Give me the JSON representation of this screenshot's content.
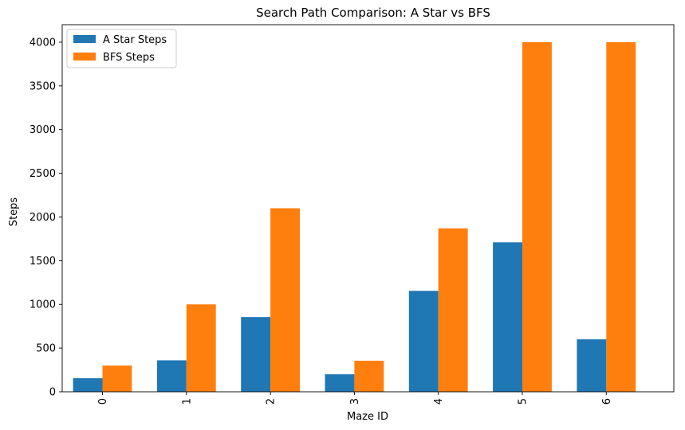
{
  "chart_data": {
    "type": "bar",
    "title": "Search Path Comparison: A Star vs BFS",
    "xlabel": "Maze ID",
    "ylabel": "Steps",
    "categories": [
      "0",
      "1",
      "2",
      "3",
      "4",
      "5",
      "6"
    ],
    "series": [
      {
        "name": "A Star Steps",
        "color": "#1f77b4",
        "values": [
          155,
          360,
          855,
          200,
          1155,
          1710,
          600
        ]
      },
      {
        "name": "BFS Steps",
        "color": "#ff7f0e",
        "values": [
          300,
          1000,
          2100,
          355,
          1870,
          4000,
          4000
        ]
      }
    ],
    "ylim": [
      0,
      4200
    ],
    "yticks": [
      "0",
      "500",
      "1000",
      "1500",
      "2000",
      "2500",
      "3000",
      "3500",
      "4000"
    ],
    "grid": false,
    "legend_position": "top-left",
    "xtick_rotation": "vertical"
  }
}
